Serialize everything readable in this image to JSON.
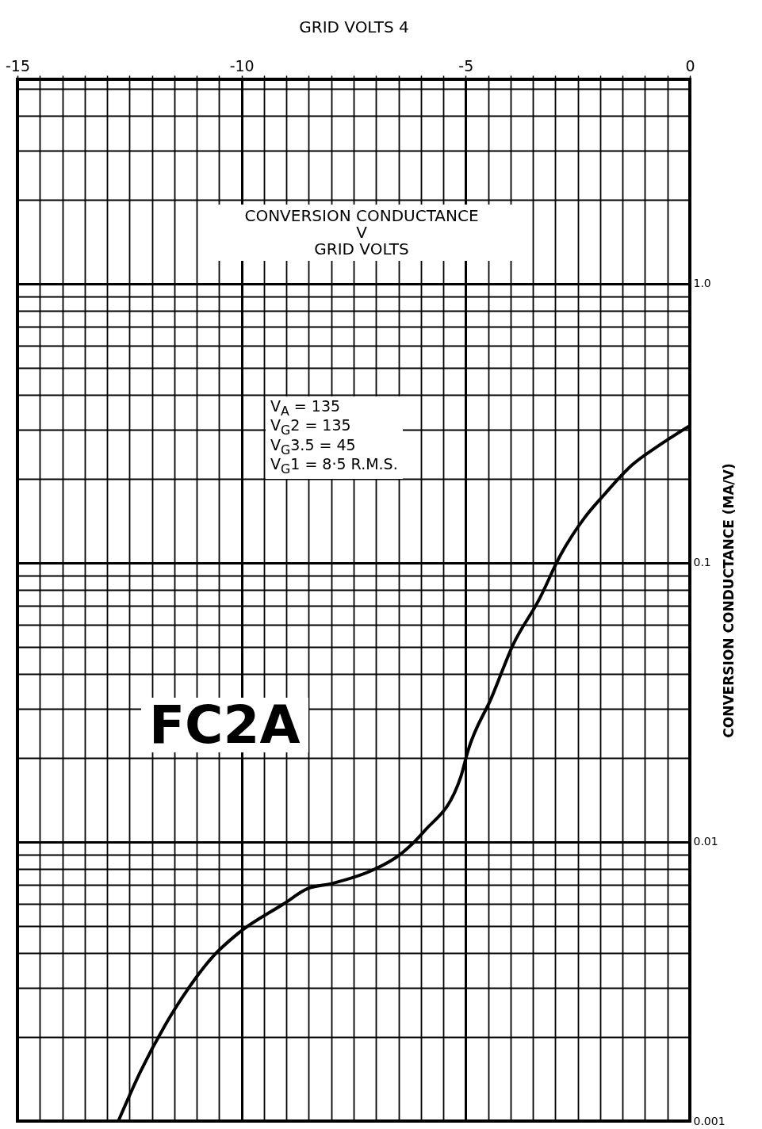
{
  "chart_data": {
    "type": "line",
    "title": "CONVERSION CONDUCTANCE\nV\nGRID VOLTS",
    "xlabel": "GRID VOLTS 4",
    "ylabel": "CONVERSION CONDUCTANCE (MA/V)",
    "annotations": [
      "V$_{A}$ = 135\nV$_{G}$2 = 135\nV$_{G}$3.5 = 45\nV$_{G}$1 = 8·5 R.M.S.",
      "FC2A"
    ],
    "x": [
      -12.75,
      -12.26,
      -11.71,
      -11.18,
      -10.63,
      -10.08,
      -9.06,
      -8.53,
      -7.98,
      -7.02,
      -6.47,
      -5.93,
      -5.11,
      -4.95,
      -4.42,
      -3.94,
      -3.36,
      -2.88,
      -2.35,
      -1.89,
      -1.29,
      -0.71,
      0
    ],
    "values": [
      0.001,
      0.0015,
      0.0022,
      0.003,
      0.0039,
      0.0047,
      0.006,
      0.0068,
      0.0071,
      0.008,
      0.009,
      0.0109,
      0.0171,
      0.0212,
      0.033,
      0.051,
      0.074,
      0.107,
      0.145,
      0.177,
      0.224,
      0.262,
      0.31
    ],
    "color": "#000000",
    "line_style": "solid",
    "log": true,
    "grid": true,
    "xlim": [
      -15,
      0
    ],
    "ylim": [
      0.001,
      5.4
    ],
    "xticks": [
      -15,
      {
        "value": -14.5,
        "label": null
      },
      {
        "value": -14,
        "label": null
      },
      {
        "value": -13.5,
        "label": null
      },
      {
        "value": -13,
        "label": null
      },
      {
        "value": -12.5,
        "label": null
      },
      {
        "value": -12,
        "label": null
      },
      {
        "value": -11.5,
        "label": null
      },
      {
        "value": -11,
        "label": null
      },
      {
        "value": -10.5,
        "label": null
      },
      -10,
      {
        "value": -9.5,
        "label": null
      },
      {
        "value": -9,
        "label": null
      },
      {
        "value": -8.5,
        "label": null
      },
      {
        "value": -8,
        "label": null
      },
      {
        "value": -7.5,
        "label": null
      },
      {
        "value": -7,
        "label": null
      },
      {
        "value": -6.5,
        "label": null
      },
      {
        "value": -6,
        "label": null
      },
      {
        "value": -5.5,
        "label": null
      },
      -5,
      {
        "value": -4.5,
        "label": null
      },
      {
        "value": -4,
        "label": null
      },
      {
        "value": -3.5,
        "label": null
      },
      {
        "value": -3,
        "label": null
      },
      {
        "value": -2.5,
        "label": null
      },
      {
        "value": -2,
        "label": null
      },
      {
        "value": -1.5,
        "label": null
      },
      {
        "value": -1,
        "label": null
      },
      {
        "value": -0.5,
        "label": null
      },
      0
    ],
    "yticks": [
      0.001,
      {
        "value": 0.002,
        "label": null
      },
      {
        "value": 0.003,
        "label": null
      },
      {
        "value": 0.004,
        "label": null
      },
      {
        "value": 0.005,
        "label": null
      },
      {
        "value": 0.006,
        "label": null
      },
      {
        "value": 0.007,
        "label": null
      },
      {
        "value": 0.008,
        "label": null
      },
      {
        "value": 0.009,
        "label": null
      },
      0.01,
      {
        "value": 0.02,
        "label": null
      },
      {
        "value": 0.03,
        "label": null
      },
      {
        "value": 0.04,
        "label": null
      },
      {
        "value": 0.05,
        "label": null
      },
      {
        "value": 0.06,
        "label": null
      },
      {
        "value": 0.07,
        "label": null
      },
      {
        "value": 0.08,
        "label": null
      },
      {
        "value": 0.09,
        "label": null
      },
      0.1,
      {
        "value": 0.2,
        "label": null
      },
      {
        "value": 0.3,
        "label": null
      },
      {
        "value": 0.4,
        "label": null
      },
      {
        "value": 0.5,
        "label": null
      },
      {
        "value": 0.6,
        "label": null
      },
      {
        "value": 0.7,
        "label": null
      },
      {
        "value": 0.8,
        "label": null
      },
      {
        "value": 0.9,
        "label": null
      },
      {
        "value": 1,
        "label": "1.0"
      },
      {
        "value": 2,
        "label": null
      },
      {
        "value": 3,
        "label": null
      },
      {
        "value": 4,
        "label": null
      },
      {
        "value": 5,
        "label": null
      }
    ]
  }
}
